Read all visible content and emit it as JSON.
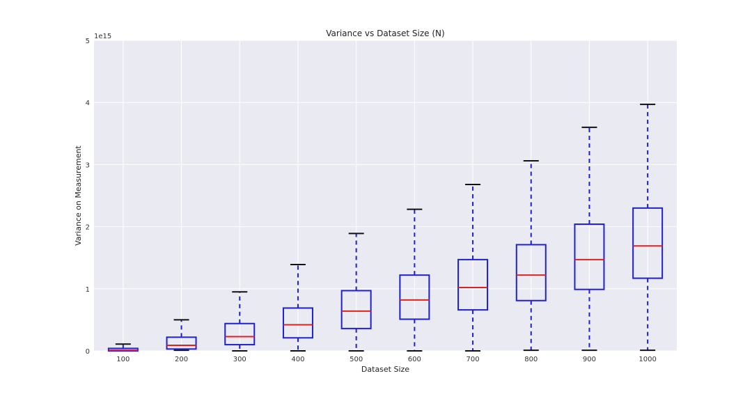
{
  "chart_data": {
    "type": "box",
    "title": "Variance vs Dataset Size (N)",
    "xlabel": "Dataset Size",
    "ylabel": "Variance on Measurement",
    "y_multiplier_label": "1e15",
    "ylim": [
      0,
      5
    ],
    "yticks": [
      "0",
      "1",
      "2",
      "3",
      "4",
      "5"
    ],
    "grid": true,
    "categories": [
      "100",
      "200",
      "300",
      "400",
      "500",
      "600",
      "700",
      "800",
      "900",
      "1000"
    ],
    "boxes": [
      {
        "category": "100",
        "whisker_low": 0.0,
        "q1": 0.0,
        "median": 0.01,
        "q3": 0.04,
        "whisker_high": 0.11
      },
      {
        "category": "200",
        "whisker_low": 0.01,
        "q1": 0.03,
        "median": 0.09,
        "q3": 0.22,
        "whisker_high": 0.5
      },
      {
        "category": "300",
        "whisker_low": 0.0,
        "q1": 0.1,
        "median": 0.23,
        "q3": 0.44,
        "whisker_high": 0.95
      },
      {
        "category": "400",
        "whisker_low": 0.0,
        "q1": 0.21,
        "median": 0.42,
        "q3": 0.69,
        "whisker_high": 1.39
      },
      {
        "category": "500",
        "whisker_low": 0.0,
        "q1": 0.36,
        "median": 0.64,
        "q3": 0.97,
        "whisker_high": 1.89
      },
      {
        "category": "600",
        "whisker_low": 0.0,
        "q1": 0.51,
        "median": 0.82,
        "q3": 1.22,
        "whisker_high": 2.28
      },
      {
        "category": "700",
        "whisker_low": 0.0,
        "q1": 0.66,
        "median": 1.02,
        "q3": 1.47,
        "whisker_high": 2.68
      },
      {
        "category": "800",
        "whisker_low": 0.01,
        "q1": 0.81,
        "median": 1.22,
        "q3": 1.71,
        "whisker_high": 3.06
      },
      {
        "category": "900",
        "whisker_low": 0.01,
        "q1": 0.99,
        "median": 1.47,
        "q3": 2.04,
        "whisker_high": 3.6
      },
      {
        "category": "1000",
        "whisker_low": 0.01,
        "q1": 1.17,
        "median": 1.69,
        "q3": 2.3,
        "whisker_high": 3.97
      }
    ],
    "colors": {
      "plot_background": "#eaeaf2",
      "grid": "#ffffff",
      "box": "#1f1fd6",
      "median": "#e02020",
      "cap": "#111111"
    }
  }
}
